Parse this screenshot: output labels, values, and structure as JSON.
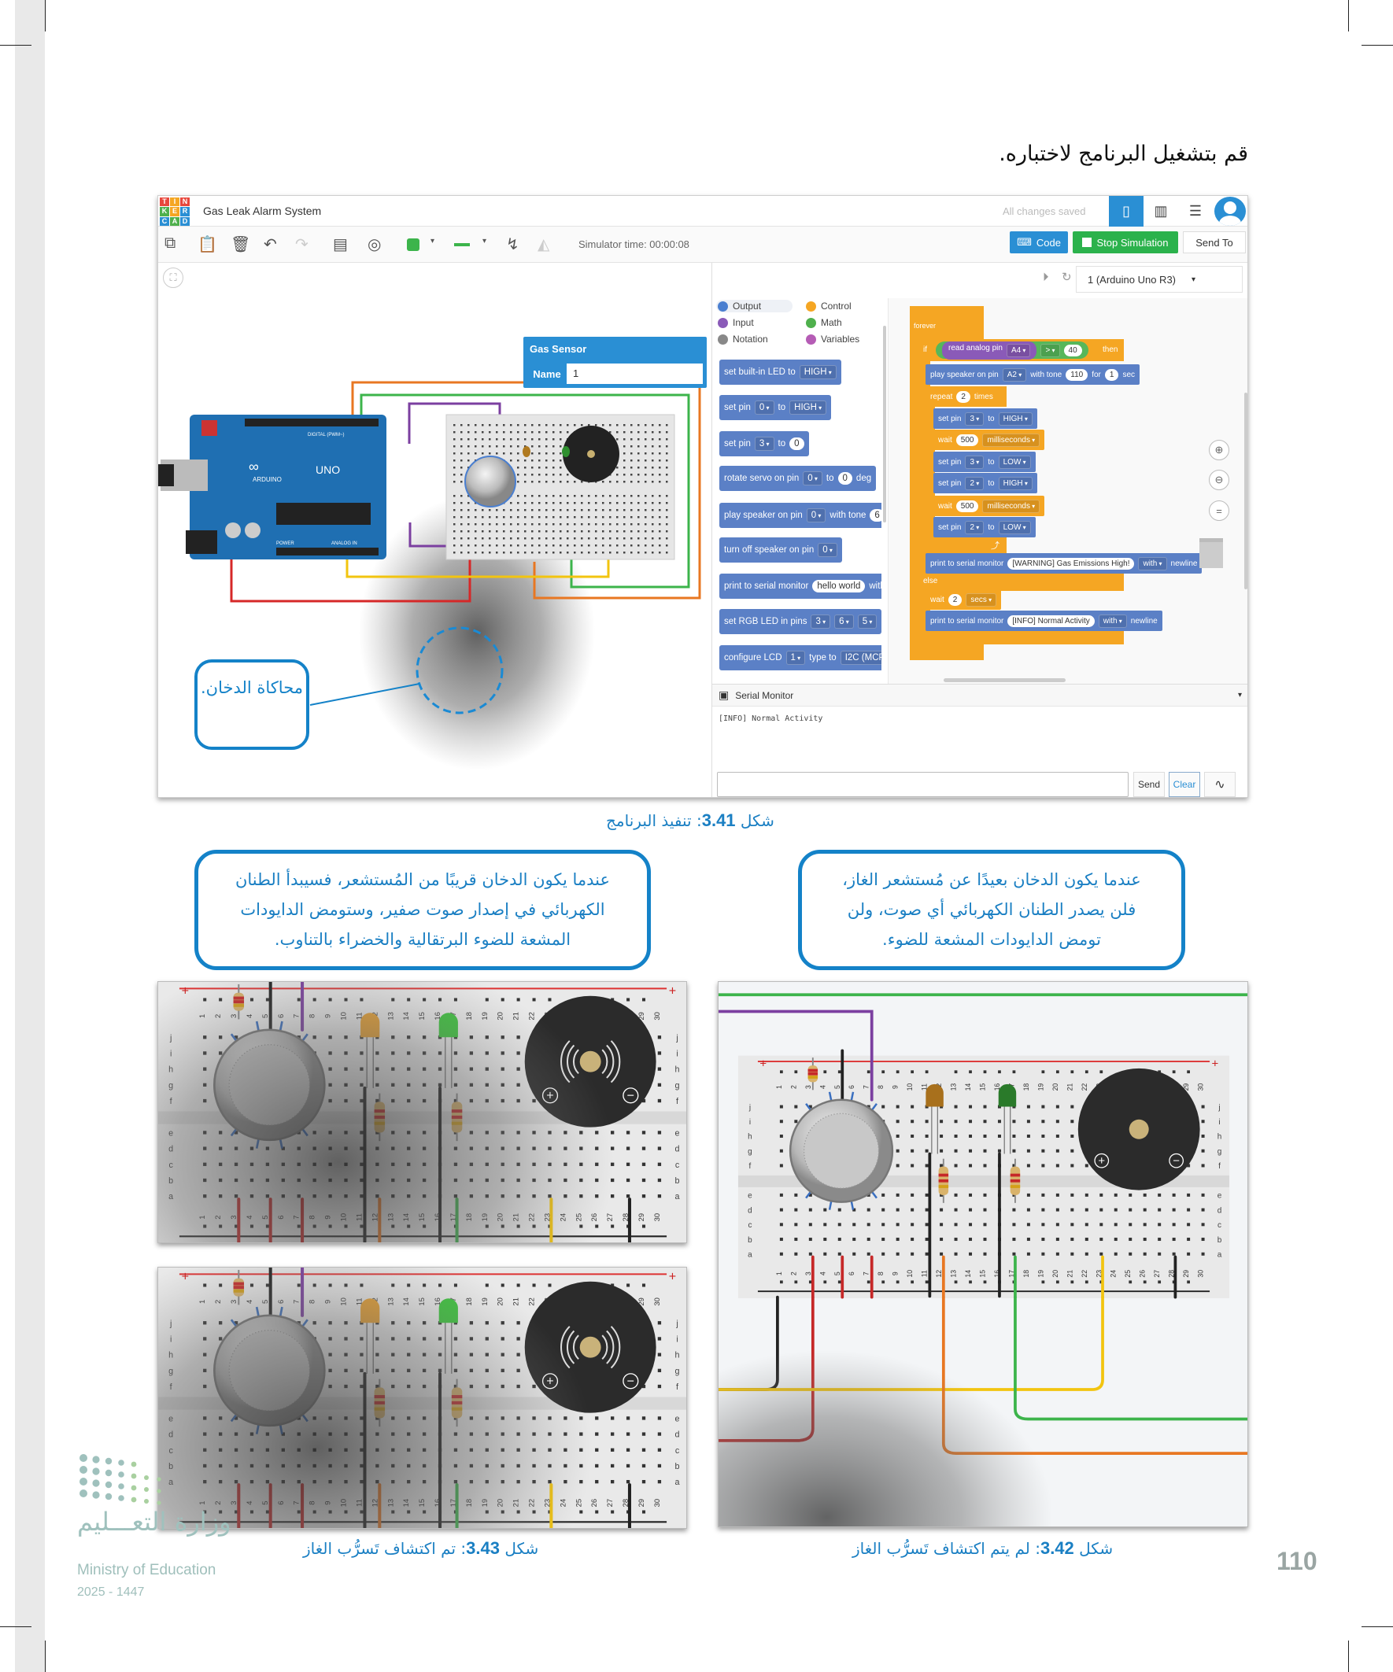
{
  "instruction": "قم بتشغيل البرنامج لاختباره.",
  "app": {
    "logo_letters": [
      "T",
      "I",
      "N",
      "K",
      "E",
      "R",
      "C",
      "A",
      "D"
    ],
    "logo_colors": [
      "#e8473c",
      "#f5a623",
      "#e8473c",
      "#4fb04d",
      "#f5a623",
      "#2a8fd4",
      "#2a8fd4",
      "#4fb04d",
      "#2a8fd4"
    ],
    "title": "Gas Leak Alarm System",
    "save_status": "All changes saved",
    "simulator_time": "Simulator time: 00:00:08",
    "code_label": "Code",
    "stop_label": "Stop Simulation",
    "send_to_label": "Send To",
    "board_select": "1 (Arduino Uno R3)",
    "accent": "#2a8fd4",
    "stop_color": "#2bb24c"
  },
  "inspector": {
    "title": "Gas Sensor",
    "name_label": "Name",
    "name_value": "1"
  },
  "arduino": {
    "brand": "ARDUINO",
    "model": "UNO",
    "digital": "DIGITAL (PWM~)",
    "power": "POWER",
    "analog": "ANALOG IN"
  },
  "categories": [
    {
      "label": "Output",
      "color": "#4a7fd0"
    },
    {
      "label": "Control",
      "color": "#f5a623"
    },
    {
      "label": "Input",
      "color": "#8a5ab8"
    },
    {
      "label": "Math",
      "color": "#4fb04d"
    },
    {
      "label": "Notation",
      "color": "#888888"
    },
    {
      "label": "Variables",
      "color": "#b55cb5"
    }
  ],
  "palette": [
    [
      {
        "t": "set built-in LED to"
      },
      {
        "d": "HIGH"
      }
    ],
    [
      {
        "t": "set pin"
      },
      {
        "d": "0"
      },
      {
        "t": "to"
      },
      {
        "d": "HIGH"
      }
    ],
    [
      {
        "t": "set pin"
      },
      {
        "d": "3"
      },
      {
        "t": "to"
      },
      {
        "n": "0"
      }
    ],
    [
      {
        "t": "rotate servo on pin"
      },
      {
        "d": "0"
      },
      {
        "t": "to"
      },
      {
        "n": "0"
      },
      {
        "t": "deg"
      }
    ],
    [
      {
        "t": "play speaker on pin"
      },
      {
        "d": "0"
      },
      {
        "t": "with tone"
      },
      {
        "n": "6"
      }
    ],
    [
      {
        "t": "turn off speaker on pin"
      },
      {
        "d": "0"
      }
    ],
    [
      {
        "t": "print to serial monitor"
      },
      {
        "n": "hello world"
      },
      {
        "t": "with"
      }
    ],
    [
      {
        "t": "set RGB LED in pins"
      },
      {
        "d": "3"
      },
      {
        "d": "6"
      },
      {
        "d": "5"
      }
    ],
    [
      {
        "t": "configure LCD"
      },
      {
        "d": "1"
      },
      {
        "t": "type to"
      },
      {
        "d": "I2C (MCP2"
      }
    ]
  ],
  "workspace": {
    "forever": "forever",
    "if": "if",
    "then": "then",
    "else": "else",
    "condition": [
      {
        "t": "read analog pin"
      },
      {
        "d": "A4"
      }
    ],
    "operator": ">",
    "threshold": "40",
    "rows": [
      {
        "color": "blue",
        "tokens": [
          {
            "t": "play speaker on pin"
          },
          {
            "d": "A2"
          },
          {
            "t": "with tone"
          },
          {
            "n": "110"
          },
          {
            "t": "for"
          },
          {
            "n": "1"
          },
          {
            "t": "sec"
          }
        ]
      },
      {
        "color": "org",
        "tokens": [
          {
            "t": "repeat"
          },
          {
            "n": "2"
          },
          {
            "t": "times"
          }
        ]
      },
      {
        "color": "blue",
        "tokens": [
          {
            "t": "set pin"
          },
          {
            "d": "3"
          },
          {
            "t": "to"
          },
          {
            "d": "HIGH"
          }
        ]
      },
      {
        "color": "org",
        "tokens": [
          {
            "t": "wait"
          },
          {
            "n": "500"
          },
          {
            "d": "milliseconds"
          }
        ]
      },
      {
        "color": "blue",
        "tokens": [
          {
            "t": "set pin"
          },
          {
            "d": "3"
          },
          {
            "t": "to"
          },
          {
            "d": "LOW"
          }
        ]
      },
      {
        "color": "blue",
        "tokens": [
          {
            "t": "set pin"
          },
          {
            "d": "2"
          },
          {
            "t": "to"
          },
          {
            "d": "HIGH"
          }
        ]
      },
      {
        "color": "org",
        "tokens": [
          {
            "t": "wait"
          },
          {
            "n": "500"
          },
          {
            "d": "milliseconds"
          }
        ]
      },
      {
        "color": "blue",
        "tokens": [
          {
            "t": "set pin"
          },
          {
            "d": "2"
          },
          {
            "t": "to"
          },
          {
            "d": "LOW"
          }
        ]
      },
      {
        "color": "blue",
        "tokens": [
          {
            "t": "print to serial monitor"
          },
          {
            "n": "[WARNING] Gas Emissions High!"
          },
          {
            "d": "with"
          },
          {
            "t": "newline"
          }
        ]
      },
      {
        "color": "org",
        "tokens": [
          {
            "t": "wait"
          },
          {
            "n": "2"
          },
          {
            "d": "secs"
          }
        ]
      },
      {
        "color": "blue",
        "tokens": [
          {
            "t": "print to serial monitor"
          },
          {
            "n": "[INFO] Normal Activity"
          },
          {
            "d": "with"
          },
          {
            "t": "newline"
          }
        ]
      }
    ]
  },
  "serial": {
    "title": "Serial Monitor",
    "output": "[INFO] Normal Activity",
    "input_value": "",
    "send_label": "Send",
    "clear_label": "Clear"
  },
  "canvas_callout": "محاكاة الدخان.",
  "figure_341": {
    "number": "3.41",
    "prefix": "شكل",
    "text": ": تنفيذ البرنامج"
  },
  "bubble_near": "عندما يكون الدخان قريبًا من المُستشعر، فسيبدأ الطنان الكهربائي في إصدار صوت صفير، وستومض الدايودات المشعة للضوء البرتقالية والخضراء بالتناوب.",
  "bubble_far": "عندما يكون الدخان بعيدًا عن مُستشعر الغاز، فلن يصدر الطنان الكهربائي أي صوت، ولن تومض الدايودات المشعة للضوء.",
  "figure_343": {
    "number": "3.43",
    "prefix": "شكل",
    "text": ": تم اكتشاف تَسرُّب الغاز"
  },
  "figure_342": {
    "number": "3.42",
    "prefix": "شكل",
    "text": ": لم يتم اكتشاف تَسرُّب الغاز"
  },
  "breadboard": {
    "rows": [
      "j",
      "i",
      "h",
      "g",
      "f",
      "e",
      "d",
      "c",
      "b",
      "a"
    ],
    "columns": [
      "1",
      "2",
      "3",
      "4",
      "5",
      "6",
      "7",
      "8",
      "9",
      "10",
      "11",
      "12",
      "13",
      "14",
      "15",
      "16",
      "17",
      "18",
      "19",
      "20",
      "21",
      "22",
      "23",
      "24",
      "25",
      "26",
      "27",
      "28",
      "29",
      "30"
    ],
    "plus": "+",
    "minus": "−"
  },
  "footer": {
    "ministry_ar": "وزارة التعـــليم",
    "ministry_en": "Ministry of Education",
    "year": "2025 - 1447",
    "page_number": "110"
  }
}
